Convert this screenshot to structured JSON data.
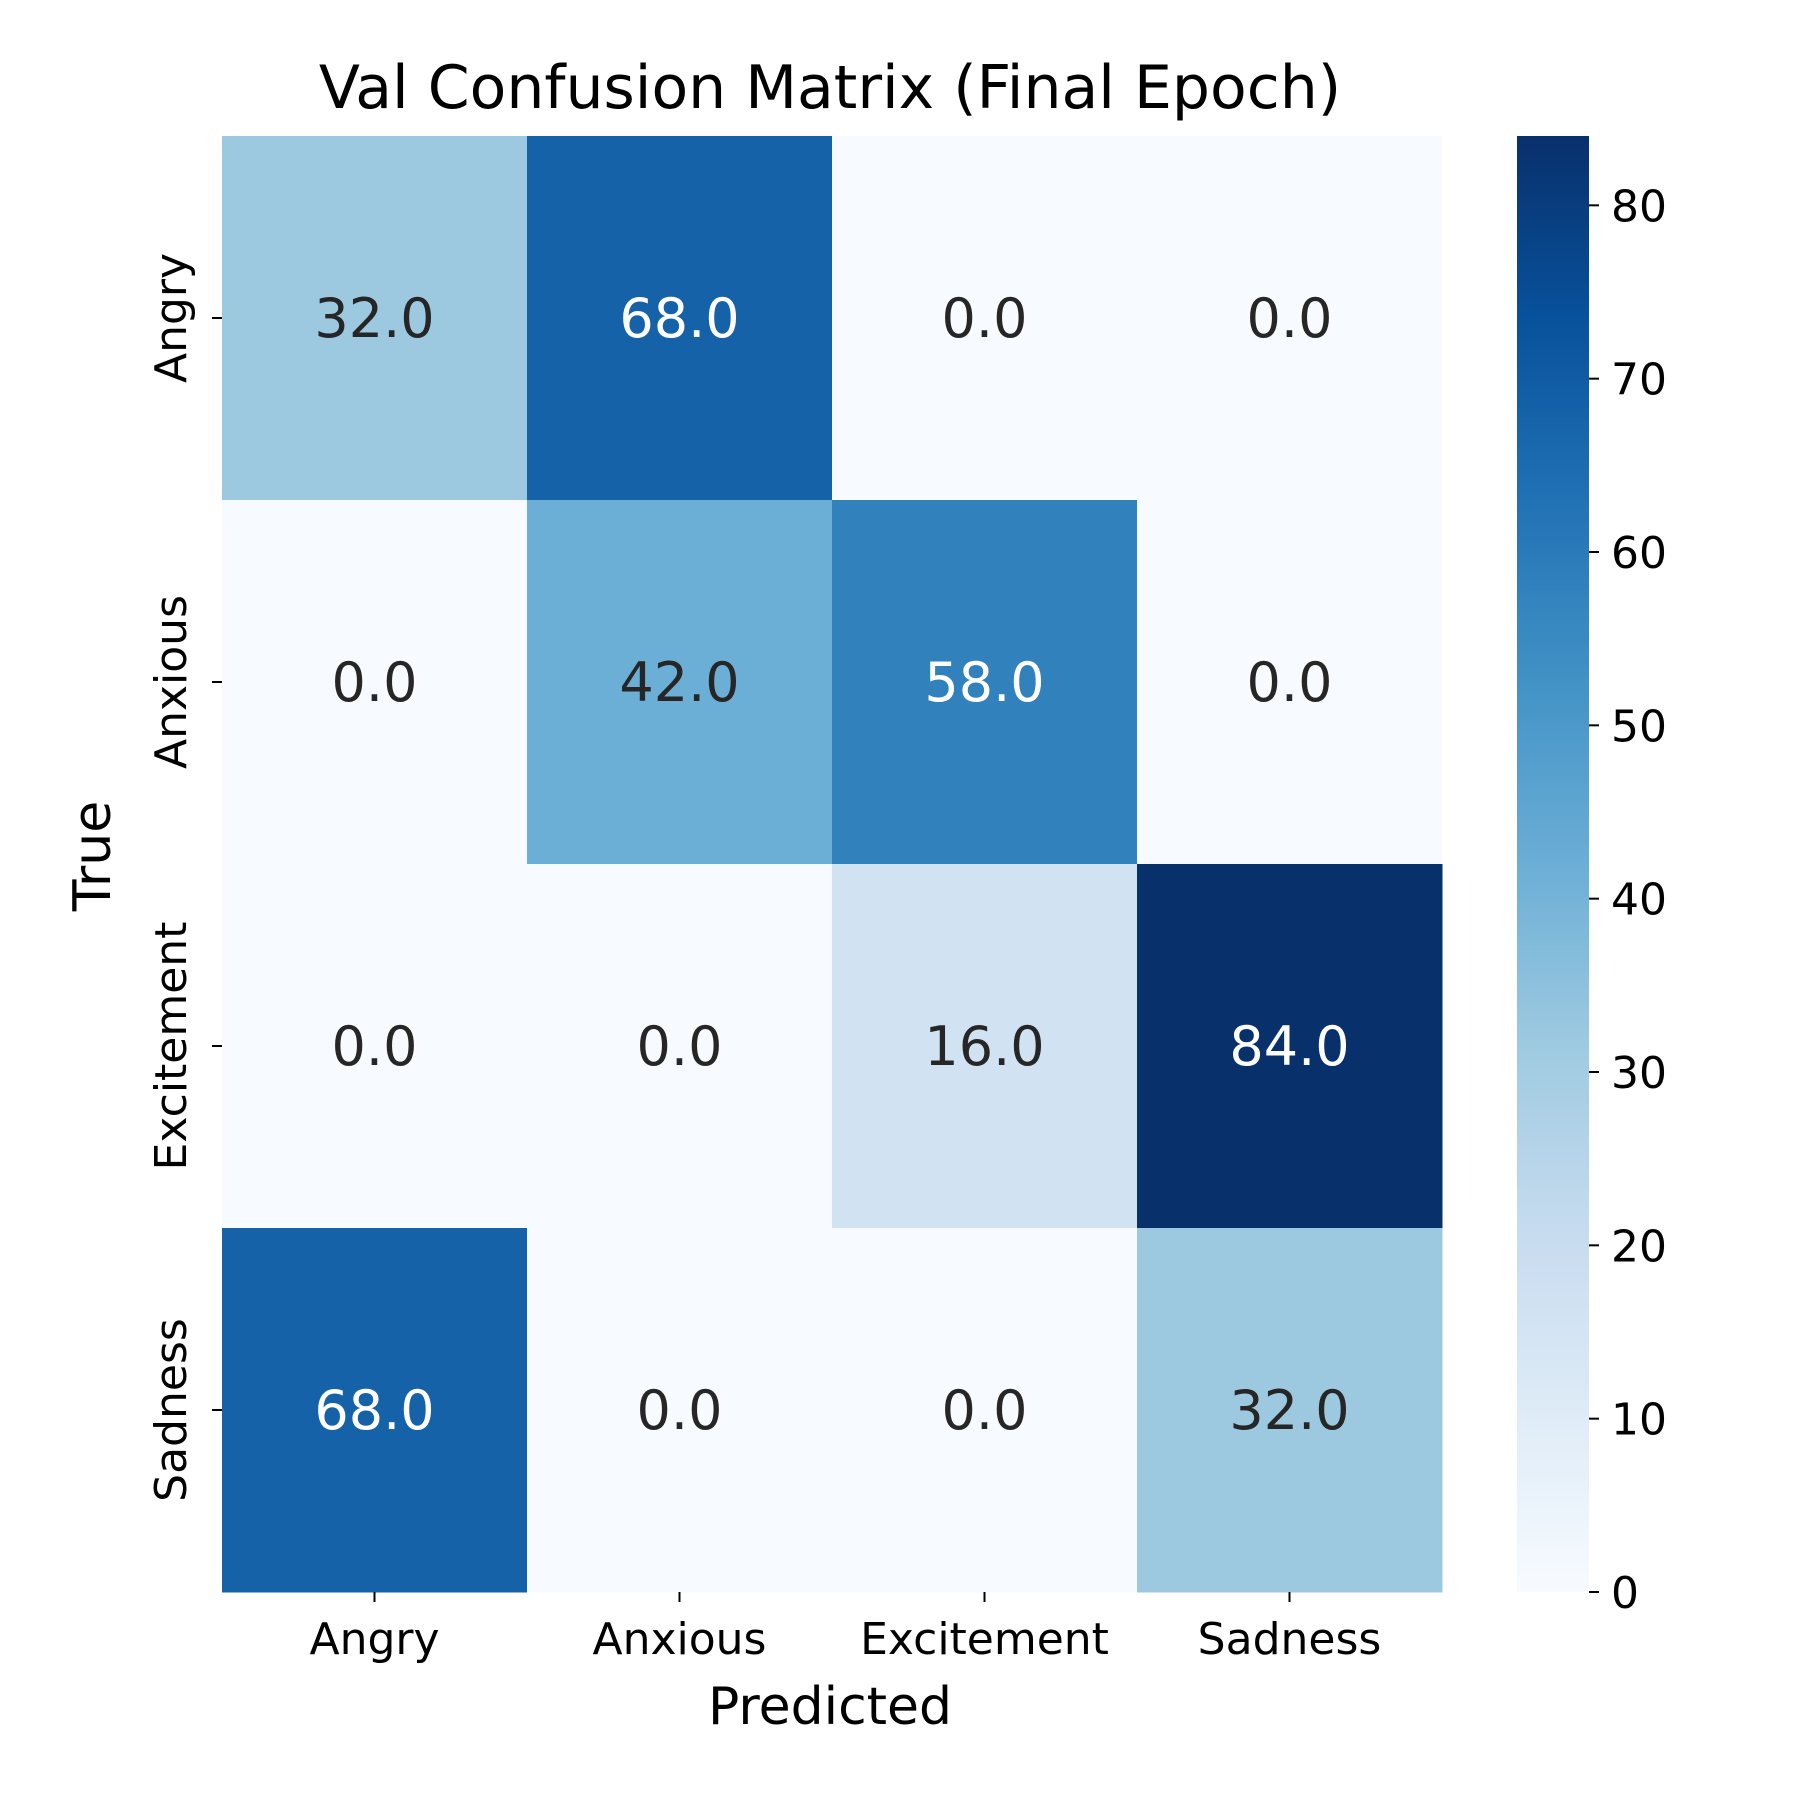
{
  "chart_data": {
    "type": "heatmap",
    "title": "Val Confusion Matrix (Final Epoch)",
    "xlabel": "Predicted",
    "ylabel": "True",
    "x_categories": [
      "Angry",
      "Anxious",
      "Excitement",
      "Sadness"
    ],
    "y_categories": [
      "Angry",
      "Anxious",
      "Excitement",
      "Sadness"
    ],
    "values": [
      [
        32.0,
        68.0,
        0.0,
        0.0
      ],
      [
        0.0,
        42.0,
        58.0,
        0.0
      ],
      [
        0.0,
        0.0,
        16.0,
        84.0
      ],
      [
        68.0,
        0.0,
        0.0,
        32.0
      ]
    ],
    "value_format": "1 decimal",
    "colorbar": {
      "colormap": "Blues",
      "vmin": 0,
      "vmax": 84,
      "ticks": [
        0,
        10,
        20,
        30,
        40,
        50,
        60,
        70,
        80
      ]
    },
    "grid": false,
    "legend": "colorbar-right"
  }
}
